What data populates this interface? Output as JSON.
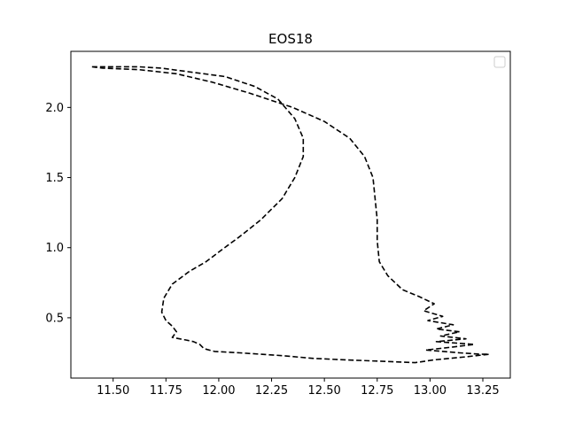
{
  "chart_data": {
    "type": "line",
    "title": "EOS18",
    "xlabel": "",
    "ylabel": "",
    "xlim": [
      11.3,
      13.38
    ],
    "ylim": [
      0.07,
      2.4
    ],
    "x_ticks": [
      11.5,
      11.75,
      12.0,
      12.25,
      12.5,
      12.75,
      13.0,
      13.25
    ],
    "x_tick_labels": [
      "11.50",
      "11.75",
      "12.00",
      "12.25",
      "12.50",
      "12.75",
      "13.00",
      "13.25"
    ],
    "y_ticks": [
      0.5,
      1.0,
      1.5,
      2.0
    ],
    "y_tick_labels": [
      "0.5",
      "1.0",
      "1.5",
      "2.0"
    ],
    "grid": false,
    "legend": {
      "placement": "top-right",
      "entries": []
    },
    "series": [
      {
        "color": "#000000",
        "dash": "dashed",
        "x": [
          11.4,
          11.62,
          11.73,
          12.03,
          12.17,
          12.28,
          12.36,
          12.4,
          12.4,
          12.36,
          12.3,
          12.2,
          12.1,
          12.01,
          11.94,
          11.86,
          11.78,
          11.74,
          11.73,
          11.75,
          11.78,
          11.8,
          11.78,
          11.85,
          11.88,
          11.91,
          11.93,
          11.98,
          12.1,
          12.3,
          12.45,
          12.6,
          12.85,
          12.93,
          13.02,
          13.16,
          13.28,
          13.24,
          13.14,
          12.98,
          13.1,
          13.21,
          13.03,
          13.17,
          13.05,
          13.14,
          13.03,
          13.11,
          12.99,
          13.06,
          12.97,
          13.02,
          12.95,
          12.87,
          12.8,
          12.76,
          12.75,
          12.75,
          12.74,
          12.73,
          12.69,
          12.62,
          12.5,
          12.35,
          12.15,
          11.97,
          11.8,
          11.62,
          11.45,
          11.4
        ],
        "y": [
          2.29,
          2.29,
          2.28,
          2.22,
          2.15,
          2.06,
          1.92,
          1.78,
          1.65,
          1.5,
          1.35,
          1.2,
          1.08,
          0.98,
          0.9,
          0.83,
          0.74,
          0.64,
          0.54,
          0.48,
          0.44,
          0.4,
          0.36,
          0.34,
          0.33,
          0.31,
          0.28,
          0.26,
          0.25,
          0.23,
          0.21,
          0.2,
          0.185,
          0.18,
          0.2,
          0.22,
          0.24,
          0.24,
          0.25,
          0.27,
          0.29,
          0.31,
          0.33,
          0.35,
          0.37,
          0.4,
          0.42,
          0.45,
          0.48,
          0.51,
          0.55,
          0.6,
          0.65,
          0.7,
          0.8,
          0.9,
          1.05,
          1.2,
          1.35,
          1.5,
          1.65,
          1.78,
          1.9,
          2.0,
          2.1,
          2.18,
          2.24,
          2.27,
          2.28,
          2.29
        ]
      }
    ]
  }
}
